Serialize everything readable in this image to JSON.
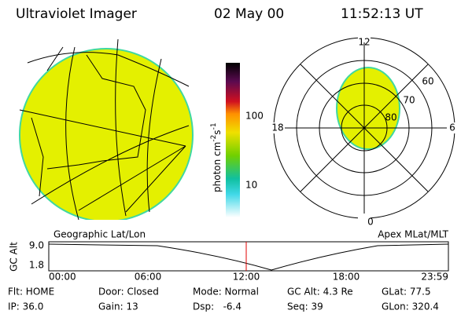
{
  "header": {
    "title": "Ultraviolet Imager",
    "date": "02 May 00",
    "time": "11:52:13 UT"
  },
  "colorbar": {
    "label": "photon cm",
    "exp1": "-2",
    "unit2": "s",
    "exp2": "-1",
    "ticks": [
      "100",
      "10"
    ]
  },
  "globe": {
    "caption": "Geographic Lat/Lon"
  },
  "polar": {
    "caption": "Apex MLat/MLT",
    "mlt_labels": [
      "12",
      "18",
      "6",
      "0"
    ],
    "lat_labels": [
      "60",
      "70",
      "80"
    ]
  },
  "altitude_plot": {
    "ylabel": "GC Alt",
    "yticks": [
      "9.0",
      "1.8"
    ],
    "xticks": [
      "00:00",
      "06:00",
      "12:00",
      "18:00",
      "23:59"
    ]
  },
  "info": {
    "rows": [
      [
        "Flt: HOME",
        "Door: Closed",
        "Mode: Normal",
        "GC Alt: 4.3 Re",
        "GLat: 77.5"
      ],
      [
        "IP: 36.0",
        "Gain: 13",
        "Dsp:   -6.4",
        "Seq: 39",
        "GLon: 320.4"
      ]
    ]
  }
}
